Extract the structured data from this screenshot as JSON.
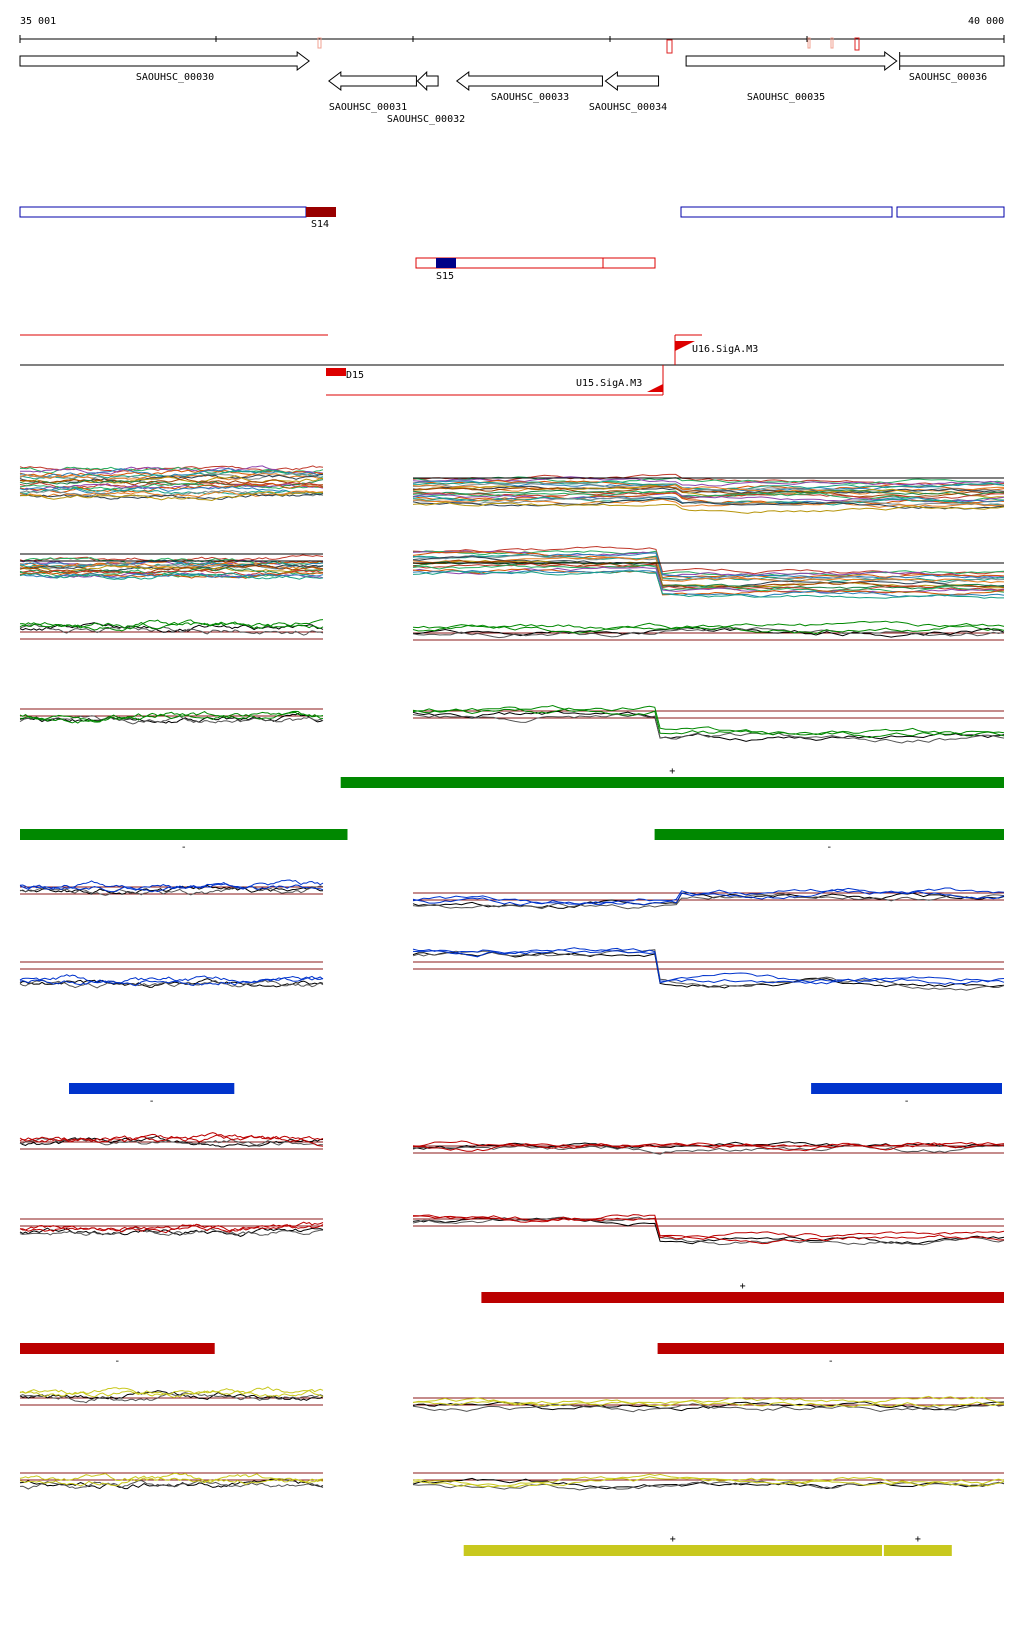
{
  "coordinates": {
    "start_label": "35 001",
    "end_label": "40 000",
    "start": 35001,
    "end": 40000
  },
  "genes": [
    {
      "label": "SAOUHSC_00030",
      "start": 35001,
      "end": 36470,
      "strand": "+"
    },
    {
      "label": "SAOUHSC_00031",
      "start": 36570,
      "end": 37015,
      "strand": "-"
    },
    {
      "label": "SAOUHSC_00032",
      "start": 37020,
      "end": 37125,
      "strand": "-"
    },
    {
      "label": "SAOUHSC_00033",
      "start": 37220,
      "end": 37960,
      "strand": "-"
    },
    {
      "label": "SAOUHSC_00034",
      "start": 37975,
      "end": 38245,
      "strand": "-"
    },
    {
      "label": "SAOUHSC_00035",
      "start": 38385,
      "end": 39455,
      "strand": "+"
    },
    {
      "label": "SAOUHSC_00036",
      "start": 39470,
      "end": 40000,
      "strand": "+"
    }
  ],
  "segments": [
    {
      "label": "S14",
      "start": 36455,
      "end": 36615
    },
    {
      "label": "S15",
      "start": 37105,
      "end": 37205
    }
  ],
  "transcription_units": [
    {
      "label": "D15",
      "start": 36570,
      "end": 36690
    },
    {
      "label": "U15.SigA.M3",
      "position": 38245,
      "strand": "-"
    },
    {
      "label": "U16.SigA.M3",
      "position": 38385,
      "strand": "+"
    }
  ],
  "condition_bars": [
    {
      "sign": "+",
      "start": 36630,
      "end": 40000,
      "color": "#008800"
    },
    {
      "sign": "-",
      "start": 35001,
      "end": 36665,
      "color": "#008800"
    },
    {
      "sign": "-",
      "start": 38225,
      "end": 40000,
      "color": "#008800"
    },
    {
      "sign": "-",
      "start": 35250,
      "end": 36090,
      "color": "#0033cc"
    },
    {
      "sign": "-",
      "start": 39020,
      "end": 39990,
      "color": "#0033cc"
    },
    {
      "sign": "+",
      "start": 37345,
      "end": 40000,
      "color": "#bb0000"
    },
    {
      "sign": "-",
      "start": 35001,
      "end": 35990,
      "color": "#bb0000"
    },
    {
      "sign": "-",
      "start": 38240,
      "end": 40000,
      "color": "#bb0000"
    },
    {
      "sign": "+",
      "start": 37255,
      "end": 39380,
      "color": "#c8c81e"
    },
    {
      "sign": "+",
      "start": 39390,
      "end": 39735,
      "color": "#c8c81e"
    }
  ],
  "colors": {
    "gene_outline": "#000000",
    "segment_outline_blue": "#0000aa",
    "segment_outline_red": "#dd0000",
    "segment_fill_dark_red": "#990000",
    "segment_fill_dark_blue": "#000088",
    "tu_red": "#dd0000",
    "threshold": "#8b1a1a",
    "green": "#008800",
    "blue": "#0033cc",
    "red": "#bb0000",
    "yellow": "#c8c81e"
  }
}
